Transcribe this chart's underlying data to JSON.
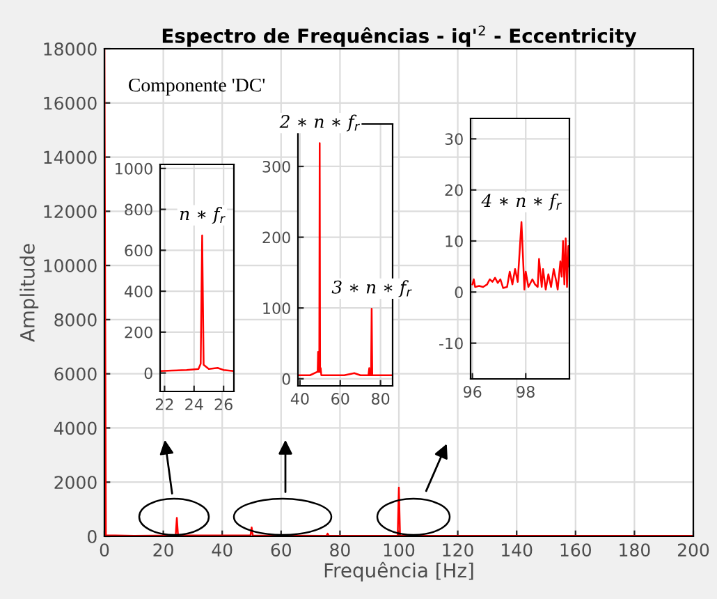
{
  "chart_data": [
    {
      "type": "line",
      "title": "Espectro de Frequências - iq'$^{2}$ - Eccentricity",
      "xlabel": "Frequência [Hz]",
      "ylabel": "Amplitude",
      "xlim": [
        0,
        200
      ],
      "ylim": [
        0,
        18000
      ],
      "xticks": [
        0,
        20,
        40,
        60,
        80,
        100,
        120,
        140,
        160,
        180,
        200
      ],
      "yticks": [
        0,
        2000,
        4000,
        6000,
        8000,
        10000,
        12000,
        14000,
        16000,
        18000
      ],
      "grid": true,
      "annotations": [
        "Componente 'DC'"
      ],
      "series": [
        {
          "color": "#ff0000",
          "x": [
            0,
            0.5,
            10,
            24.2,
            24.6,
            25,
            49.6,
            50,
            50.4,
            75.4,
            75.8,
            76.2,
            99.6,
            100,
            100.4,
            125,
            150,
            200
          ],
          "values": [
            18000,
            40,
            20,
            30,
            680,
            30,
            30,
            330,
            30,
            20,
            100,
            20,
            20,
            1800,
            20,
            20,
            20,
            20
          ]
        }
      ]
    },
    {
      "type": "line",
      "xlim": [
        21.7,
        26.7
      ],
      "ylim": [
        -90,
        1020
      ],
      "xticks": [
        22,
        24,
        26
      ],
      "yticks": [
        0,
        200,
        400,
        600,
        800,
        1000
      ],
      "grid": true,
      "annotations": [
        {
          "text": "n ∗ f$_{r}$",
          "x": 24.55,
          "y": 673
        }
      ],
      "series": [
        {
          "color": "#ff0000",
          "x": [
            21.7,
            22.5,
            23.5,
            24.3,
            24.45,
            24.55,
            24.65,
            25.0,
            25.6,
            26.0,
            26.67
          ],
          "values": [
            10,
            12,
            15,
            20,
            45,
            673,
            40,
            20,
            25,
            15,
            10
          ]
        }
      ]
    },
    {
      "type": "line",
      "xlim": [
        39,
        86
      ],
      "ylim": [
        -10,
        360
      ],
      "xticks": [
        40,
        60,
        80
      ],
      "yticks": [
        0,
        100,
        200,
        300
      ],
      "grid": true,
      "annotations": [
        {
          "text": "2 ∗ n ∗ f$_{r}$",
          "x": 49.8,
          "y": 333
        },
        {
          "text": "3 ∗ n ∗ f$_{r}$",
          "x": 75.6,
          "y": 99
        }
      ],
      "series": [
        {
          "color": "#ff0000",
          "x": [
            39,
            45,
            48.8,
            49.0,
            49.2,
            49.6,
            49.8,
            50.0,
            50.3,
            50.6,
            62,
            67,
            70,
            74.0,
            74.4,
            74.6,
            75.3,
            75.6,
            75.9,
            80,
            86
          ],
          "values": [
            5,
            5,
            10,
            38,
            10,
            10,
            333,
            10,
            15,
            5,
            5,
            8,
            5,
            5,
            15,
            5,
            5,
            99,
            5,
            5,
            5
          ]
        }
      ]
    },
    {
      "type": "line",
      "xlim": [
        95.93,
        99.64
      ],
      "ylim": [
        -17,
        34
      ],
      "xticks": [
        96,
        98
      ],
      "yticks": [
        -10,
        0,
        10,
        20,
        30
      ],
      "grid": true,
      "annotations": [
        {
          "text": "4 ∗ n ∗ f$_{r}$",
          "x": 97.84,
          "y": 13.7
        }
      ],
      "series": [
        {
          "color": "#ff0000",
          "x": [
            96.0,
            96.05,
            96.1,
            96.25,
            96.4,
            96.55,
            96.65,
            96.75,
            96.85,
            96.95,
            97.05,
            97.15,
            97.3,
            97.4,
            97.5,
            97.6,
            97.7,
            97.84,
            97.95,
            98.0,
            98.1,
            98.25,
            98.35,
            98.45,
            98.5,
            98.6,
            98.65,
            98.75,
            98.85,
            98.95,
            99.05,
            99.15,
            99.2,
            99.3,
            99.35,
            99.4,
            99.45,
            99.5,
            99.55,
            99.6,
            99.64
          ],
          "values": [
            1.5,
            2.5,
            1.0,
            1.2,
            1.0,
            1.5,
            2.5,
            2.0,
            2.8,
            1.8,
            2.5,
            0.8,
            1.0,
            4.0,
            1.5,
            4.5,
            2.0,
            13.7,
            0.5,
            4.0,
            1.0,
            2.5,
            1.5,
            1.0,
            6.5,
            1.0,
            4.5,
            0.5,
            3.5,
            1.0,
            4.5,
            2.0,
            0.5,
            6.0,
            3.0,
            10.0,
            1.5,
            10.5,
            1.0,
            9.0,
            5.0
          ]
        }
      ]
    }
  ]
}
